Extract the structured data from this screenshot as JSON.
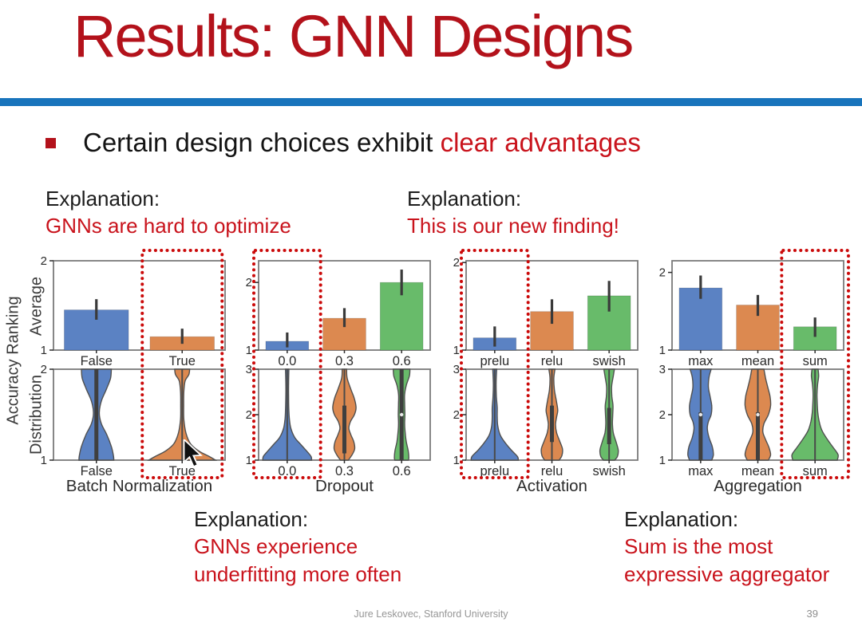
{
  "slide": {
    "title": "Results: GNN Designs",
    "bullet": {
      "pre": "Certain design choices exhibit ",
      "highlight": "clear advantages"
    },
    "footer": {
      "credit": "Jure Leskovec, Stanford University",
      "page": "39"
    }
  },
  "explanations": {
    "top_left": {
      "label": "Explanation:",
      "text": "GNNs are hard to optimize"
    },
    "top_right": {
      "label": "Explanation:",
      "text": "This is our new finding!"
    },
    "bottom_left": {
      "label": "Explanation:",
      "lines": [
        "GNNs experience",
        "underfitting more often"
      ]
    },
    "bottom_right": {
      "label": "Explanation:",
      "lines": [
        "Sum is the most",
        "expressive aggregator"
      ]
    }
  },
  "axis_labels": {
    "shared": "Accuracy Ranking",
    "average": "Average",
    "distribution": "Distribution"
  },
  "colors": {
    "title_red": "#b3121b",
    "accent_red": "#c9131c",
    "divider_blue": "#1874bc",
    "highlight_red": "#cb0a0a",
    "series": [
      "#5b82c3",
      "#dc8950",
      "#68bb6a"
    ],
    "chart_border": "#7a7a7a",
    "chart_text": "#2b2b2b",
    "error_bar": "#3a3a3a",
    "violin_stroke": "#4f4f4f"
  },
  "chart_data": [
    {
      "name": "batch-normalization",
      "xlabel": "Batch Normalization",
      "categories": [
        "False",
        "True"
      ],
      "highlight_index": 1,
      "bar": {
        "type": "bar",
        "ylabel": "Average",
        "ylim": [
          1,
          2.0
        ],
        "yticks": [
          "1",
          "2"
        ],
        "values": [
          1.45,
          1.15
        ],
        "err": [
          [
            1.34,
            1.57
          ],
          [
            1.07,
            1.24
          ]
        ]
      },
      "violin": {
        "type": "violin",
        "ylabel": "Distribution",
        "ylim": [
          1,
          2
        ],
        "yticks": [
          "1",
          "2"
        ],
        "violins": [
          {
            "profile": [
              [
                2.0,
                0.36
              ],
              [
                1.9,
                0.34
              ],
              [
                1.78,
                0.24
              ],
              [
                1.65,
                0.12
              ],
              [
                1.52,
                0.07
              ],
              [
                1.4,
                0.12
              ],
              [
                1.28,
                0.25
              ],
              [
                1.15,
                0.36
              ],
              [
                1.05,
                0.41
              ],
              [
                1.0,
                0.42
              ]
            ],
            "line": [
              1,
              2
            ],
            "box": [
              1,
              2
            ],
            "median": null
          },
          {
            "profile": [
              [
                2.0,
                0.18
              ],
              [
                1.94,
                0.16
              ],
              [
                1.87,
                0.07
              ],
              [
                1.75,
                0.04
              ],
              [
                1.6,
                0.035
              ],
              [
                1.45,
                0.04
              ],
              [
                1.3,
                0.09
              ],
              [
                1.18,
                0.2
              ],
              [
                1.1,
                0.4
              ],
              [
                1.04,
                0.65
              ],
              [
                1.0,
                0.8
              ]
            ],
            "line": [
              1,
              2
            ],
            "box": null,
            "median": null
          }
        ]
      }
    },
    {
      "name": "dropout",
      "xlabel": "Dropout",
      "categories": [
        "0.0",
        "0.3",
        "0.6"
      ],
      "highlight_index": 0,
      "bar": {
        "type": "bar",
        "ylabel": "Average",
        "ylim": [
          1,
          2.32
        ],
        "yticks": [
          "1",
          "2"
        ],
        "values": [
          1.13,
          1.47,
          2.0
        ],
        "err": [
          [
            1.04,
            1.26
          ],
          [
            1.34,
            1.62
          ],
          [
            1.81,
            2.19
          ]
        ]
      },
      "violin": {
        "type": "violin",
        "ylabel": "Distribution",
        "ylim": [
          1,
          3
        ],
        "yticks": [
          "1",
          "2",
          "3"
        ],
        "violins": [
          {
            "profile": [
              [
                3.0,
                0.06
              ],
              [
                2.7,
                0.05
              ],
              [
                2.4,
                0.05
              ],
              [
                2.1,
                0.06
              ],
              [
                1.9,
                0.08
              ],
              [
                1.7,
                0.13
              ],
              [
                1.5,
                0.27
              ],
              [
                1.35,
                0.48
              ],
              [
                1.2,
                0.7
              ],
              [
                1.08,
                0.86
              ],
              [
                1.0,
                0.88
              ]
            ],
            "line": [
              1,
              3
            ],
            "box": null,
            "median": null
          },
          {
            "profile": [
              [
                3.0,
                0.08
              ],
              [
                2.8,
                0.1
              ],
              [
                2.55,
                0.24
              ],
              [
                2.35,
                0.36
              ],
              [
                2.15,
                0.42
              ],
              [
                2.0,
                0.36
              ],
              [
                1.85,
                0.22
              ],
              [
                1.7,
                0.16
              ],
              [
                1.55,
                0.24
              ],
              [
                1.4,
                0.34
              ],
              [
                1.25,
                0.37
              ],
              [
                1.12,
                0.28
              ],
              [
                1.0,
                0.14
              ]
            ],
            "line": [
              1,
              3
            ],
            "box": [
              1.15,
              2.2
            ],
            "median": null
          },
          {
            "profile": [
              [
                3.0,
                0.3
              ],
              [
                2.85,
                0.28
              ],
              [
                2.65,
                0.17
              ],
              [
                2.45,
                0.11
              ],
              [
                2.25,
                0.11
              ],
              [
                2.0,
                0.12
              ],
              [
                1.8,
                0.11
              ],
              [
                1.6,
                0.13
              ],
              [
                1.4,
                0.17
              ],
              [
                1.2,
                0.24
              ],
              [
                1.05,
                0.26
              ],
              [
                1.0,
                0.24
              ]
            ],
            "line": [
              1,
              3
            ],
            "box": [
              1,
              3
            ],
            "median": 2
          }
        ]
      }
    },
    {
      "name": "activation",
      "xlabel": "Activation",
      "categories": [
        "prelu",
        "relu",
        "swish"
      ],
      "highlight_index": 0,
      "bar": {
        "type": "bar",
        "ylabel": "Average",
        "ylim": [
          1,
          2.02
        ],
        "yticks": [
          "1",
          "2"
        ],
        "values": [
          1.14,
          1.44,
          1.62
        ],
        "err": [
          [
            1.04,
            1.27
          ],
          [
            1.3,
            1.58
          ],
          [
            1.44,
            1.79
          ]
        ]
      },
      "violin": {
        "type": "violin",
        "ylabel": "Distribution",
        "ylim": [
          1,
          3
        ],
        "yticks": [
          "1",
          "2",
          "3"
        ],
        "violins": [
          {
            "profile": [
              [
                3.0,
                0.07
              ],
              [
                2.7,
                0.05
              ],
              [
                2.4,
                0.06
              ],
              [
                2.15,
                0.09
              ],
              [
                1.95,
                0.09
              ],
              [
                1.75,
                0.11
              ],
              [
                1.55,
                0.2
              ],
              [
                1.38,
                0.38
              ],
              [
                1.22,
                0.6
              ],
              [
                1.08,
                0.82
              ],
              [
                1.0,
                0.85
              ]
            ],
            "line": [
              1,
              3
            ],
            "box": null,
            "median": null
          },
          {
            "profile": [
              [
                3.0,
                0.11
              ],
              [
                2.8,
                0.07
              ],
              [
                2.55,
                0.09
              ],
              [
                2.3,
                0.16
              ],
              [
                2.1,
                0.21
              ],
              [
                1.95,
                0.17
              ],
              [
                1.78,
                0.13
              ],
              [
                1.6,
                0.17
              ],
              [
                1.42,
                0.28
              ],
              [
                1.25,
                0.38
              ],
              [
                1.1,
                0.36
              ],
              [
                1.0,
                0.26
              ]
            ],
            "line": [
              1,
              3
            ],
            "box": [
              1.4,
              2.2
            ],
            "median": null
          },
          {
            "profile": [
              [
                3.0,
                0.19
              ],
              [
                2.85,
                0.15
              ],
              [
                2.62,
                0.09
              ],
              [
                2.4,
                0.1
              ],
              [
                2.2,
                0.14
              ],
              [
                2.0,
                0.13
              ],
              [
                1.8,
                0.12
              ],
              [
                1.6,
                0.15
              ],
              [
                1.4,
                0.25
              ],
              [
                1.22,
                0.33
              ],
              [
                1.08,
                0.3
              ],
              [
                1.0,
                0.2
              ]
            ],
            "line": [
              1,
              3
            ],
            "box": [
              1.35,
              2.15
            ],
            "median": null
          }
        ]
      }
    },
    {
      "name": "aggregation",
      "xlabel": "Aggregation",
      "categories": [
        "max",
        "mean",
        "sum"
      ],
      "highlight_index": 2,
      "bar": {
        "type": "bar",
        "ylabel": "Average",
        "ylim": [
          1,
          2.15
        ],
        "yticks": [
          "1",
          "2"
        ],
        "values": [
          1.8,
          1.58,
          1.3
        ],
        "err": [
          [
            1.66,
            1.96
          ],
          [
            1.44,
            1.71
          ],
          [
            1.17,
            1.42
          ]
        ]
      },
      "violin": {
        "type": "violin",
        "ylabel": "Distribution",
        "ylim": [
          1,
          3
        ],
        "yticks": [
          "1",
          "2",
          "3"
        ],
        "violins": [
          {
            "profile": [
              [
                3.0,
                0.38
              ],
              [
                2.82,
                0.3
              ],
              [
                2.6,
                0.28
              ],
              [
                2.4,
                0.34
              ],
              [
                2.2,
                0.4
              ],
              [
                2.0,
                0.38
              ],
              [
                1.85,
                0.28
              ],
              [
                1.7,
                0.24
              ],
              [
                1.5,
                0.3
              ],
              [
                1.3,
                0.42
              ],
              [
                1.12,
                0.46
              ],
              [
                1.0,
                0.4
              ]
            ],
            "line": [
              1,
              3
            ],
            "box": [
              1,
              2.05
            ],
            "median": 2
          },
          {
            "profile": [
              [
                3.0,
                0.22
              ],
              [
                2.8,
                0.28
              ],
              [
                2.6,
                0.36
              ],
              [
                2.4,
                0.44
              ],
              [
                2.2,
                0.46
              ],
              [
                2.0,
                0.38
              ],
              [
                1.8,
                0.22
              ],
              [
                1.62,
                0.18
              ],
              [
                1.45,
                0.28
              ],
              [
                1.28,
                0.4
              ],
              [
                1.12,
                0.46
              ],
              [
                1.0,
                0.38
              ]
            ],
            "line": [
              1,
              3
            ],
            "box": [
              1,
              2.05
            ],
            "median": 2
          },
          {
            "profile": [
              [
                3.0,
                0.11
              ],
              [
                2.85,
                0.13
              ],
              [
                2.65,
                0.09
              ],
              [
                2.45,
                0.07
              ],
              [
                2.25,
                0.08
              ],
              [
                2.05,
                0.1
              ],
              [
                1.85,
                0.15
              ],
              [
                1.65,
                0.25
              ],
              [
                1.45,
                0.45
              ],
              [
                1.28,
                0.65
              ],
              [
                1.12,
                0.83
              ],
              [
                1.0,
                0.8
              ]
            ],
            "line": [
              1,
              3
            ],
            "box": null,
            "median": null
          }
        ]
      }
    }
  ]
}
